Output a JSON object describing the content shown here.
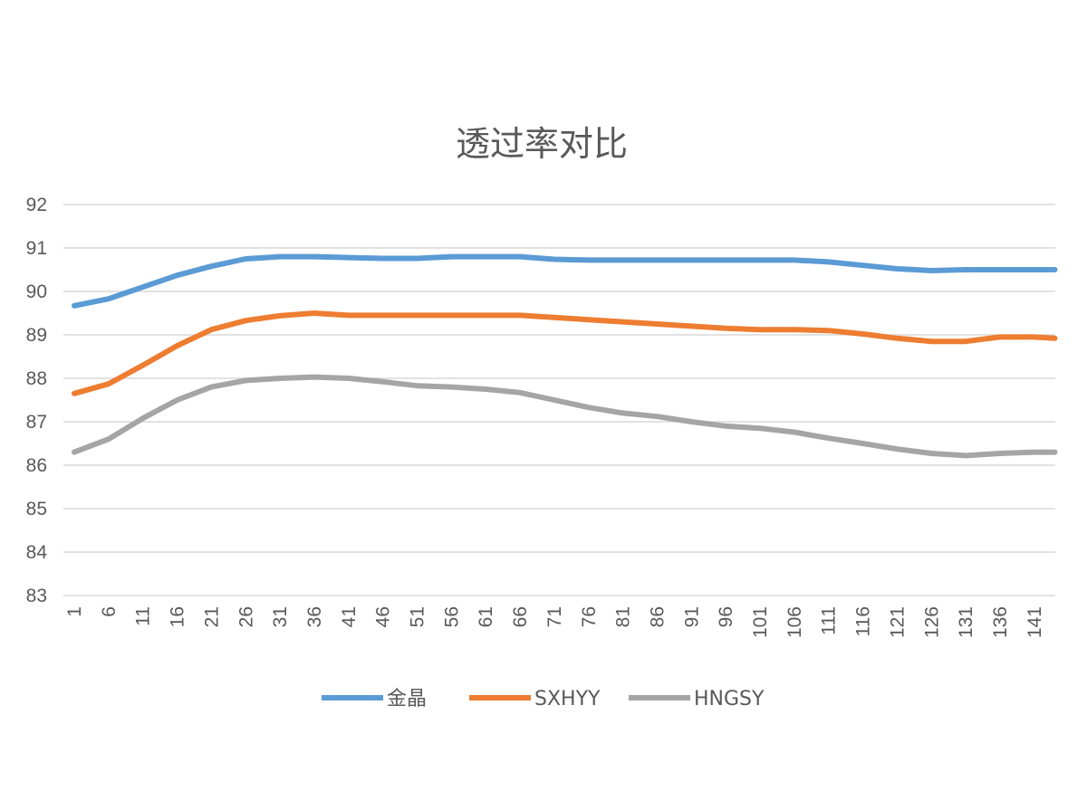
{
  "chart_data": {
    "type": "line",
    "title": "透过率对比",
    "xlabel": "",
    "ylabel": "",
    "ylim": [
      83,
      92
    ],
    "yticks": [
      "83",
      "84",
      "85",
      "86",
      "87",
      "88",
      "89",
      "90",
      "91",
      "92"
    ],
    "xlim": [
      1,
      144
    ],
    "xticks": [
      "1",
      "6",
      "11",
      "16",
      "21",
      "26",
      "31",
      "36",
      "41",
      "46",
      "51",
      "56",
      "61",
      "66",
      "71",
      "76",
      "81",
      "86",
      "91",
      "96",
      "101",
      "106",
      "111",
      "116",
      "121",
      "126",
      "131",
      "136",
      "141"
    ],
    "grid": true,
    "legend_position": "bottom",
    "x": [
      1,
      6,
      11,
      16,
      21,
      26,
      31,
      36,
      41,
      46,
      51,
      56,
      61,
      66,
      71,
      76,
      81,
      86,
      91,
      96,
      101,
      106,
      111,
      116,
      121,
      126,
      131,
      136,
      141,
      144
    ],
    "series": [
      {
        "name": "金晶",
        "color": "#5B9BD5",
        "values": [
          89.67,
          89.83,
          90.1,
          90.37,
          90.58,
          90.75,
          90.8,
          90.8,
          90.78,
          90.76,
          90.76,
          90.8,
          90.8,
          90.8,
          90.74,
          90.72,
          90.72,
          90.72,
          90.72,
          90.72,
          90.72,
          90.72,
          90.68,
          90.6,
          90.52,
          90.48,
          90.5,
          90.5,
          90.5,
          90.5
        ]
      },
      {
        "name": "SXHYY",
        "color": "#ED7D31",
        "values": [
          87.65,
          87.87,
          88.3,
          88.75,
          89.12,
          89.33,
          89.44,
          89.5,
          89.45,
          89.45,
          89.45,
          89.45,
          89.45,
          89.45,
          89.4,
          89.35,
          89.3,
          89.25,
          89.2,
          89.15,
          89.12,
          89.12,
          89.1,
          89.02,
          88.92,
          88.85,
          88.85,
          88.95,
          88.95,
          88.92
        ]
      },
      {
        "name": "HNGSY",
        "color": "#A5A5A5",
        "values": [
          86.3,
          86.6,
          87.08,
          87.5,
          87.8,
          87.95,
          88.0,
          88.03,
          88.0,
          87.92,
          87.83,
          87.8,
          87.75,
          87.67,
          87.5,
          87.33,
          87.2,
          87.12,
          87.0,
          86.9,
          86.85,
          86.76,
          86.62,
          86.5,
          86.37,
          86.27,
          86.22,
          86.27,
          86.3,
          86.3
        ]
      }
    ]
  }
}
